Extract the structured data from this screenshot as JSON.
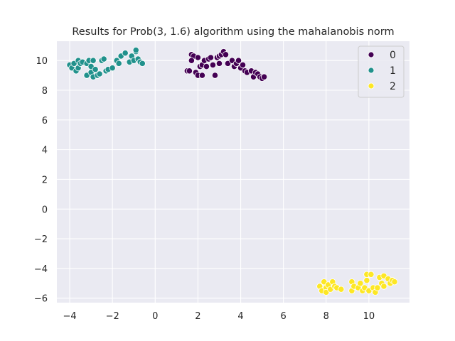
{
  "chart_data": {
    "type": "scatter",
    "title": "Results for Prob(3, 1.6) algorithm using the mahalanobis norm",
    "xlabel": "",
    "ylabel": "",
    "xlim": [
      -4.6,
      11.9
    ],
    "ylim": [
      -6.3,
      11.3
    ],
    "x_ticks": [
      -4,
      -2,
      0,
      2,
      4,
      6,
      8,
      10
    ],
    "x_tick_labels": [
      "−4",
      "−2",
      "0",
      "2",
      "4",
      "6",
      "8",
      "10"
    ],
    "y_ticks": [
      -6,
      -4,
      -2,
      0,
      2,
      4,
      6,
      8,
      10
    ],
    "y_tick_labels": [
      "−6",
      "−4",
      "−2",
      "0",
      "2",
      "4",
      "6",
      "8",
      "10"
    ],
    "grid": true,
    "legend_position": "top-right",
    "series": [
      {
        "name": "0",
        "color": "#440154",
        "points": [
          [
            1.5,
            9.3
          ],
          [
            1.6,
            9.3
          ],
          [
            1.7,
            10.4
          ],
          [
            1.8,
            10.3
          ],
          [
            1.7,
            10.0
          ],
          [
            1.9,
            9.2
          ],
          [
            2.0,
            10.2
          ],
          [
            2.0,
            9.0
          ],
          [
            2.1,
            9.6
          ],
          [
            2.2,
            9.7
          ],
          [
            2.3,
            10.0
          ],
          [
            2.2,
            9.0
          ],
          [
            2.4,
            9.6
          ],
          [
            2.5,
            10.1
          ],
          [
            2.6,
            10.2
          ],
          [
            2.7,
            9.7
          ],
          [
            2.8,
            9.0
          ],
          [
            2.9,
            10.2
          ],
          [
            3.0,
            9.8
          ],
          [
            3.0,
            10.3
          ],
          [
            3.1,
            10.4
          ],
          [
            3.2,
            10.6
          ],
          [
            3.3,
            10.4
          ],
          [
            3.4,
            9.8
          ],
          [
            3.6,
            10.0
          ],
          [
            3.7,
            9.6
          ],
          [
            3.8,
            9.8
          ],
          [
            3.9,
            10.0
          ],
          [
            4.0,
            9.5
          ],
          [
            4.1,
            9.7
          ],
          [
            4.2,
            9.3
          ],
          [
            4.3,
            9.2
          ],
          [
            4.5,
            9.3
          ],
          [
            4.6,
            8.9
          ],
          [
            4.7,
            9.2
          ],
          [
            4.8,
            9.1
          ],
          [
            4.9,
            8.9
          ],
          [
            5.0,
            8.8
          ],
          [
            5.1,
            8.9
          ]
        ]
      },
      {
        "name": "1",
        "color": "#21918c",
        "points": [
          [
            -4.0,
            9.7
          ],
          [
            -3.9,
            9.5
          ],
          [
            -3.8,
            9.8
          ],
          [
            -3.7,
            9.3
          ],
          [
            -3.6,
            10.0
          ],
          [
            -3.6,
            9.5
          ],
          [
            -3.5,
            9.8
          ],
          [
            -3.4,
            9.9
          ],
          [
            -3.2,
            9.0
          ],
          [
            -3.2,
            9.8
          ],
          [
            -3.1,
            10.0
          ],
          [
            -3.0,
            9.6
          ],
          [
            -3.0,
            9.2
          ],
          [
            -2.9,
            8.9
          ],
          [
            -2.9,
            10.0
          ],
          [
            -2.8,
            9.4
          ],
          [
            -2.7,
            9.0
          ],
          [
            -2.6,
            9.1
          ],
          [
            -2.5,
            10.0
          ],
          [
            -2.4,
            10.1
          ],
          [
            -2.3,
            9.3
          ],
          [
            -2.2,
            9.4
          ],
          [
            -2.0,
            9.5
          ],
          [
            -1.8,
            10.0
          ],
          [
            -1.7,
            9.8
          ],
          [
            -1.6,
            10.3
          ],
          [
            -1.4,
            10.5
          ],
          [
            -1.2,
            9.9
          ],
          [
            -1.1,
            10.3
          ],
          [
            -1.0,
            10.0
          ],
          [
            -0.9,
            10.6
          ],
          [
            -0.9,
            10.7
          ],
          [
            -0.8,
            10.1
          ],
          [
            -0.7,
            9.9
          ],
          [
            -0.6,
            9.8
          ]
        ]
      },
      {
        "name": "2",
        "color": "#fde725",
        "points": [
          [
            7.7,
            -5.2
          ],
          [
            7.8,
            -5.5
          ],
          [
            7.9,
            -4.9
          ],
          [
            8.0,
            -5.3
          ],
          [
            8.0,
            -5.6
          ],
          [
            8.1,
            -5.1
          ],
          [
            8.2,
            -5.4
          ],
          [
            8.3,
            -4.9
          ],
          [
            8.4,
            -5.2
          ],
          [
            8.5,
            -5.3
          ],
          [
            8.7,
            -5.4
          ],
          [
            9.2,
            -4.9
          ],
          [
            9.2,
            -5.5
          ],
          [
            9.3,
            -5.2
          ],
          [
            9.5,
            -5.3
          ],
          [
            9.6,
            -5.0
          ],
          [
            9.7,
            -5.5
          ],
          [
            9.8,
            -5.3
          ],
          [
            9.9,
            -4.8
          ],
          [
            9.9,
            -4.4
          ],
          [
            10.0,
            -5.5
          ],
          [
            10.1,
            -4.4
          ],
          [
            10.2,
            -5.3
          ],
          [
            10.3,
            -5.6
          ],
          [
            10.4,
            -5.3
          ],
          [
            10.5,
            -4.6
          ],
          [
            10.6,
            -5.0
          ],
          [
            10.7,
            -4.5
          ],
          [
            10.7,
            -5.2
          ],
          [
            10.9,
            -4.7
          ],
          [
            11.0,
            -5.0
          ],
          [
            11.1,
            -4.8
          ],
          [
            11.2,
            -4.9
          ]
        ]
      }
    ]
  }
}
